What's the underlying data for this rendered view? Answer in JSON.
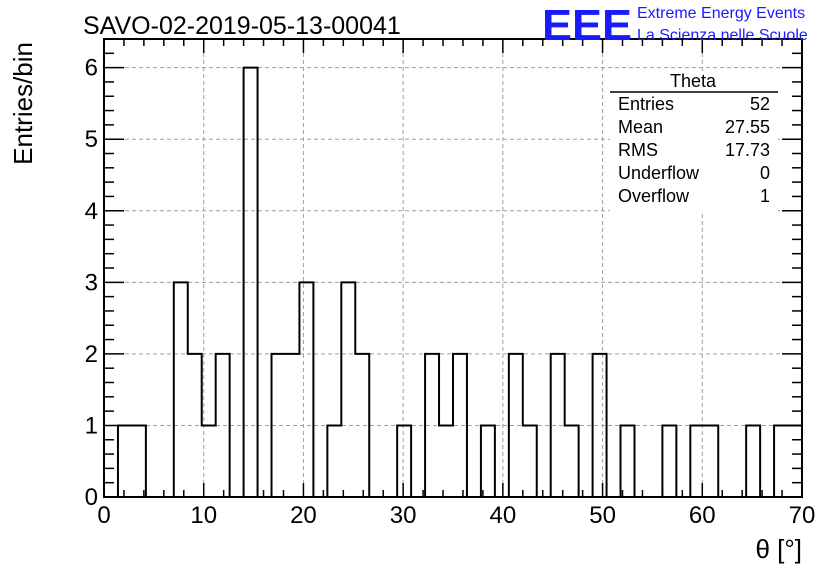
{
  "title": "SAVO-02-2019-05-13-00041",
  "logo": {
    "letters": "EEE",
    "line1": "Extreme Energy Events",
    "line2": "La Scienza nelle Scuole",
    "color": "#1a1aff"
  },
  "stats": {
    "name": "Theta",
    "rows": [
      {
        "label": "Entries",
        "value": "52"
      },
      {
        "label": "Mean",
        "value": "27.55"
      },
      {
        "label": "RMS",
        "value": "17.73"
      },
      {
        "label": "Underflow",
        "value": "0"
      },
      {
        "label": "Overflow",
        "value": "1"
      }
    ]
  },
  "chart_data": {
    "type": "bar",
    "style": "step-histogram",
    "xlabel": "θ [°]",
    "ylabel": "Entries/bin",
    "xlim": [
      0,
      70
    ],
    "ylim": [
      0,
      6.4
    ],
    "xticks": [
      0,
      10,
      20,
      30,
      40,
      50,
      60,
      70
    ],
    "yticks": [
      0,
      1,
      2,
      3,
      4,
      5,
      6
    ],
    "grid": true,
    "bin_width": 1.4,
    "x_start": 1.4,
    "values": [
      1,
      1,
      0,
      0,
      3,
      2,
      1,
      2,
      0,
      6,
      0,
      2,
      2,
      3,
      0,
      1,
      3,
      2,
      0,
      0,
      1,
      0,
      2,
      1,
      2,
      0,
      1,
      0,
      2,
      1,
      0,
      2,
      1,
      0,
      2,
      0,
      1,
      0,
      0,
      1,
      0,
      1,
      1,
      0,
      0,
      1,
      0,
      1,
      1
    ]
  }
}
